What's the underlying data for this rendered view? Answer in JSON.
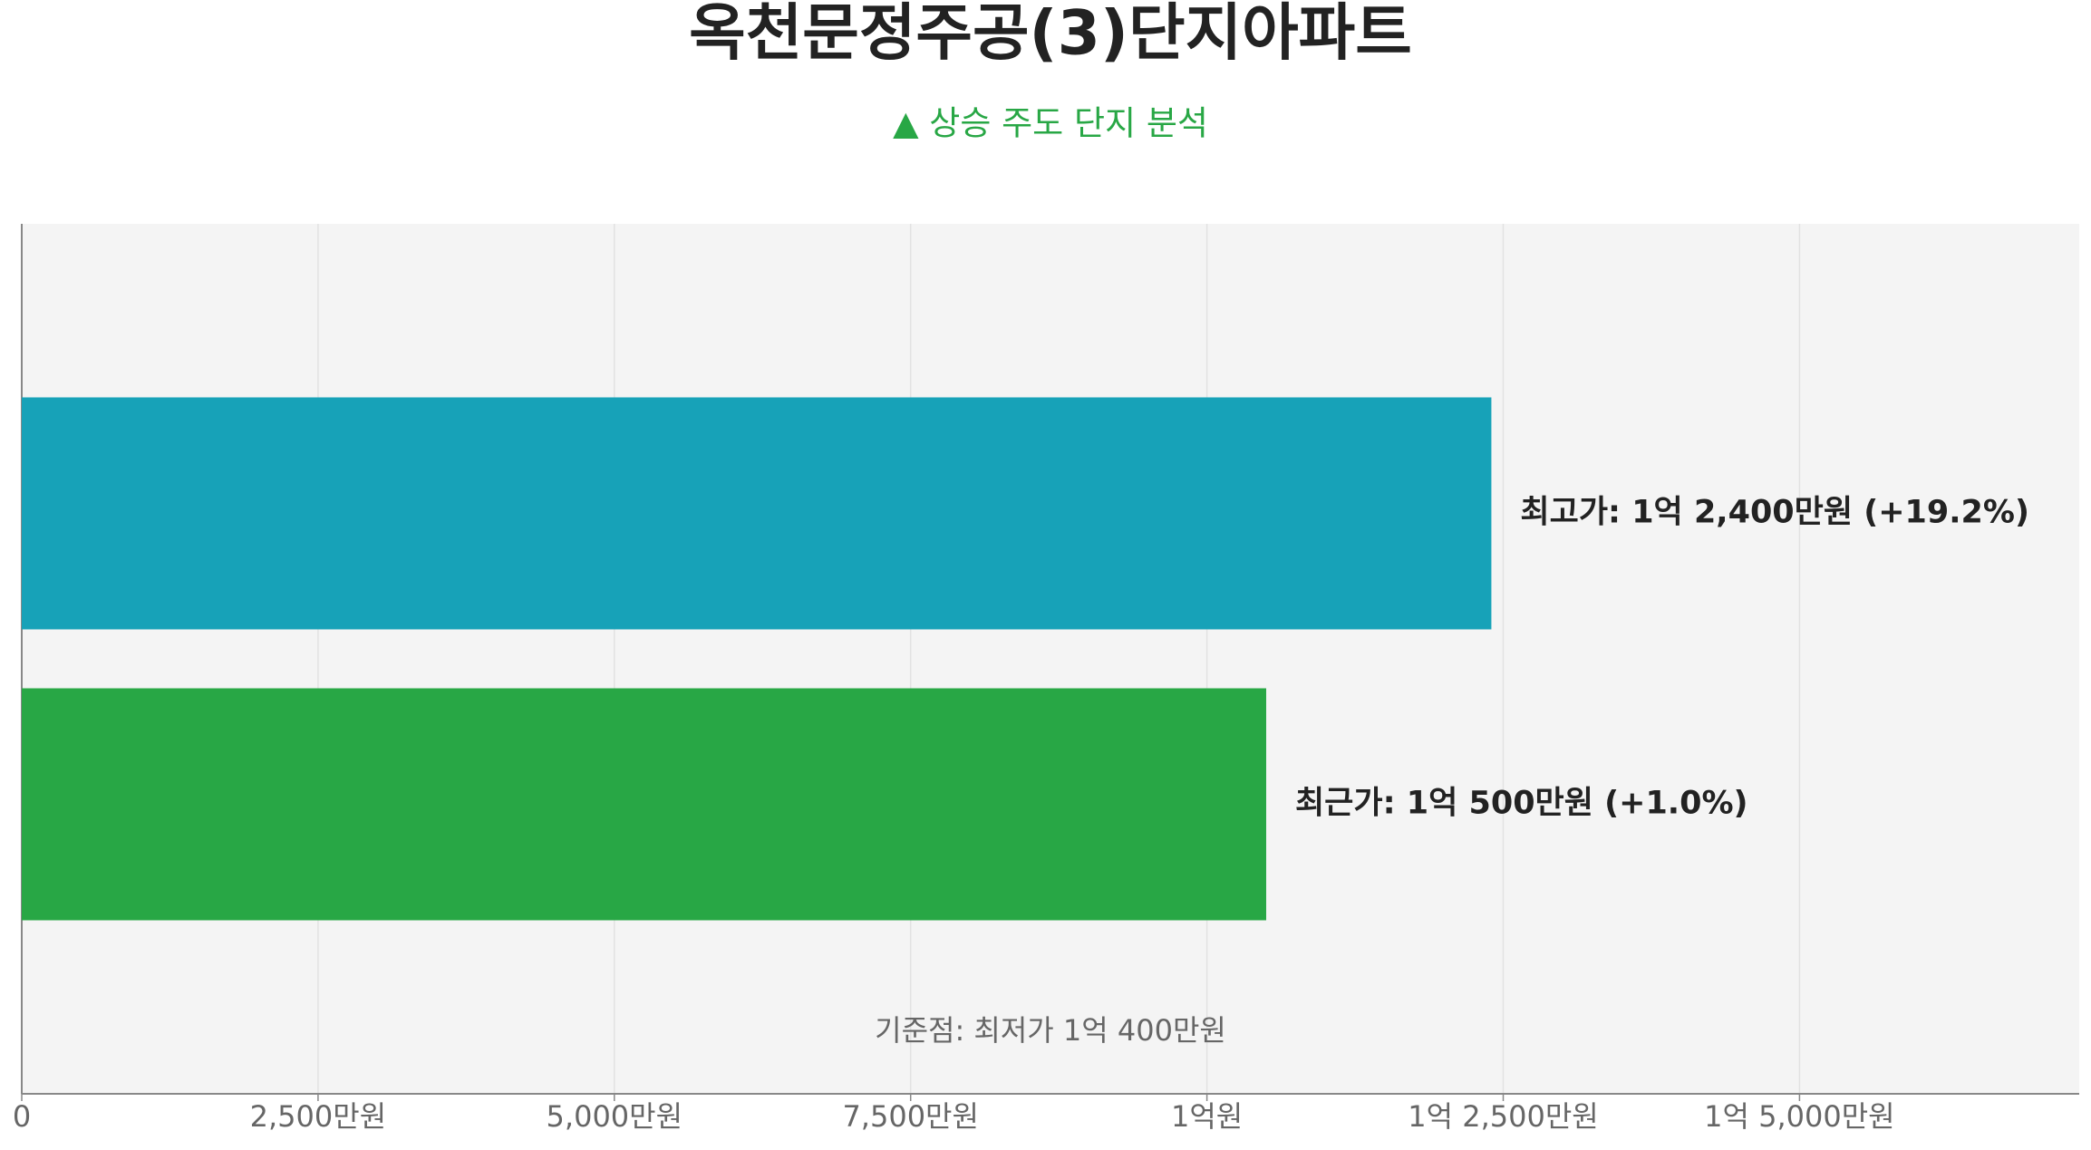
{
  "chart_data": {
    "type": "barh",
    "title": "옥천문정주공(3)단지아파트",
    "subtitle": "▲ 상승 주도 단지 분석",
    "annotation": "기준점: 최저가 1억 400만원",
    "categories": [
      null,
      null
    ],
    "series": [
      {
        "values": [
          12400,
          10500
        ],
        "colors": [
          "#17a2b8",
          "#28a745"
        ],
        "value_labels": [
          "최고가: 1억 2,400만원 (+19.2%)",
          "최근가: 1억 500만원 (+1.0%)"
        ]
      }
    ],
    "xlim": [
      0,
      17360
    ],
    "xticks": [
      0,
      {
        "value": 2500,
        "label": "2,500만원"
      },
      {
        "value": 5000,
        "label": "5,000만원"
      },
      {
        "value": 7500,
        "label": "7,500만원"
      },
      {
        "value": 10000,
        "label": "1억원"
      },
      {
        "value": 12500,
        "label": "1억 2,500만원"
      },
      {
        "value": 15000,
        "label": "1억 5,000만원"
      }
    ],
    "grid": true
  }
}
